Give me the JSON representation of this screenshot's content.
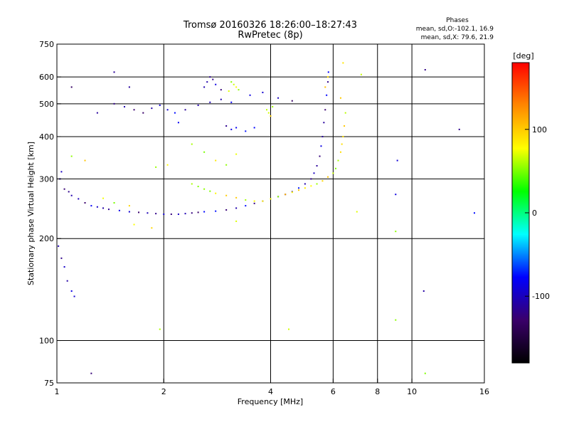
{
  "chart_data": {
    "type": "scatter",
    "title": "Tromsø 20160326 18:26:00–18:27:43",
    "subtitle": "RwPretec (8p)",
    "xlabel": "Frequency [MHz]",
    "ylabel": "Stationary phase Virtual Height [km]",
    "x_scale": "log",
    "y_scale": "log",
    "xlim": [
      1,
      16
    ],
    "ylim": [
      75,
      750
    ],
    "x_ticks": [
      1,
      2,
      4,
      6,
      8,
      10,
      16
    ],
    "x_tick_labels": [
      "1",
      "2",
      "4",
      "6",
      "8",
      "10",
      "16"
    ],
    "x_gridlines": [
      2,
      4,
      6,
      8,
      10
    ],
    "y_ticks": [
      75,
      100,
      200,
      300,
      400,
      500,
      600,
      750
    ],
    "y_tick_labels": [
      "75",
      "100",
      "200",
      "300",
      "400",
      "500",
      "600",
      "750"
    ],
    "y_gridlines": [
      100,
      200,
      300,
      400,
      500,
      600
    ],
    "grid": true,
    "stats": {
      "heading": "Phases",
      "line1": "mean, sd,O:-102.1, 16.9",
      "line2": "mean, sd,X: 79.6, 21.9"
    },
    "colorbar": {
      "label": "[deg]",
      "range": [
        -180,
        180
      ],
      "ticks": [
        100,
        0,
        -100
      ],
      "tick_labels": [
        "100",
        "0",
        "-100"
      ],
      "colors": [
        "#000000",
        "#3a006a",
        "#0000ff",
        "#00ffff",
        "#00ff00",
        "#ffff00",
        "#ff8800",
        "#ff0000"
      ]
    },
    "series": [
      {
        "mode": "O",
        "phase_mean": -102.1,
        "points": [
          [
            1.02,
            300
          ],
          [
            1.03,
            315
          ],
          [
            1.05,
            280
          ],
          [
            1.08,
            275
          ],
          [
            1.1,
            268
          ],
          [
            1.15,
            262
          ],
          [
            1.2,
            255
          ],
          [
            1.25,
            250
          ],
          [
            1.3,
            248
          ],
          [
            1.35,
            246
          ],
          [
            1.4,
            244
          ],
          [
            1.5,
            242
          ],
          [
            1.6,
            240
          ],
          [
            1.7,
            239
          ],
          [
            1.8,
            238
          ],
          [
            1.9,
            237
          ],
          [
            2.0,
            236
          ],
          [
            2.1,
            236
          ],
          [
            2.2,
            236
          ],
          [
            2.3,
            237
          ],
          [
            2.4,
            238
          ],
          [
            2.5,
            239
          ],
          [
            2.6,
            240
          ],
          [
            2.8,
            241
          ],
          [
            3.0,
            243
          ],
          [
            3.2,
            246
          ],
          [
            3.4,
            250
          ],
          [
            3.6,
            254
          ],
          [
            3.8,
            258
          ],
          [
            4.0,
            262
          ],
          [
            4.2,
            266
          ],
          [
            4.4,
            270
          ],
          [
            4.6,
            275
          ],
          [
            4.8,
            282
          ],
          [
            5.0,
            290
          ],
          [
            5.2,
            300
          ],
          [
            5.3,
            312
          ],
          [
            5.4,
            328
          ],
          [
            5.5,
            350
          ],
          [
            5.55,
            375
          ],
          [
            5.6,
            400
          ],
          [
            5.65,
            440
          ],
          [
            5.7,
            480
          ],
          [
            5.75,
            530
          ],
          [
            5.8,
            580
          ],
          [
            5.82,
            620
          ],
          [
            1.01,
            190
          ],
          [
            1.03,
            175
          ],
          [
            1.05,
            165
          ],
          [
            1.07,
            150
          ],
          [
            1.1,
            140
          ],
          [
            1.12,
            135
          ],
          [
            1.25,
            80
          ],
          [
            1.45,
            500
          ],
          [
            1.55,
            490
          ],
          [
            1.65,
            480
          ],
          [
            1.75,
            470
          ],
          [
            1.85,
            485
          ],
          [
            1.95,
            495
          ],
          [
            2.05,
            480
          ],
          [
            2.15,
            470
          ],
          [
            2.3,
            480
          ],
          [
            2.5,
            495
          ],
          [
            2.7,
            505
          ],
          [
            2.9,
            515
          ],
          [
            3.1,
            505
          ],
          [
            2.6,
            560
          ],
          [
            2.65,
            580
          ],
          [
            2.7,
            600
          ],
          [
            2.75,
            590
          ],
          [
            2.8,
            570
          ],
          [
            2.9,
            550
          ],
          [
            3.0,
            430
          ],
          [
            3.1,
            420
          ],
          [
            3.2,
            425
          ],
          [
            3.4,
            415
          ],
          [
            3.6,
            425
          ],
          [
            2.2,
            440
          ],
          [
            3.5,
            530
          ],
          [
            3.8,
            540
          ],
          [
            4.2,
            520
          ],
          [
            4.6,
            510
          ],
          [
            1.45,
            620
          ],
          [
            1.6,
            560
          ],
          [
            10.9,
            630
          ],
          [
            10.8,
            140
          ],
          [
            9.1,
            340
          ],
          [
            9.0,
            270
          ],
          [
            13.6,
            420
          ],
          [
            15.0,
            238
          ],
          [
            1.1,
            560
          ],
          [
            1.3,
            470
          ]
        ]
      },
      {
        "mode": "X",
        "phase_mean": 79.6,
        "points": [
          [
            3.8,
            258
          ],
          [
            4.0,
            262
          ],
          [
            4.2,
            266
          ],
          [
            4.4,
            270
          ],
          [
            4.6,
            274
          ],
          [
            4.8,
            278
          ],
          [
            5.0,
            282
          ],
          [
            5.2,
            286
          ],
          [
            5.4,
            290
          ],
          [
            5.6,
            296
          ],
          [
            5.8,
            304
          ],
          [
            6.0,
            312
          ],
          [
            6.1,
            322
          ],
          [
            6.2,
            340
          ],
          [
            6.3,
            360
          ],
          [
            6.35,
            380
          ],
          [
            6.4,
            400
          ],
          [
            6.45,
            430
          ],
          [
            6.5,
            470
          ],
          [
            6.3,
            520
          ],
          [
            2.4,
            290
          ],
          [
            2.5,
            285
          ],
          [
            2.6,
            280
          ],
          [
            2.7,
            276
          ],
          [
            2.8,
            272
          ],
          [
            3.0,
            268
          ],
          [
            3.2,
            264
          ],
          [
            3.4,
            260
          ],
          [
            3.6,
            258
          ],
          [
            3.1,
            580
          ],
          [
            3.15,
            570
          ],
          [
            3.2,
            560
          ],
          [
            3.25,
            550
          ],
          [
            3.05,
            545
          ],
          [
            3.9,
            480
          ],
          [
            3.95,
            470
          ],
          [
            4.0,
            460
          ],
          [
            4.05,
            490
          ],
          [
            2.4,
            380
          ],
          [
            2.6,
            360
          ],
          [
            2.8,
            340
          ],
          [
            3.0,
            330
          ],
          [
            3.2,
            355
          ],
          [
            1.9,
            325
          ],
          [
            2.05,
            330
          ],
          [
            1.35,
            263
          ],
          [
            1.45,
            255
          ],
          [
            1.6,
            250
          ],
          [
            1.65,
            220
          ],
          [
            1.85,
            215
          ],
          [
            3.2,
            225
          ],
          [
            5.7,
            560
          ],
          [
            5.8,
            600
          ],
          [
            6.4,
            660
          ],
          [
            7.2,
            610
          ],
          [
            7.0,
            240
          ],
          [
            1.1,
            350
          ],
          [
            1.2,
            340
          ],
          [
            9.0,
            210
          ],
          [
            9.0,
            115
          ],
          [
            1.95,
            108
          ],
          [
            4.5,
            108
          ],
          [
            10.9,
            80
          ]
        ]
      }
    ]
  }
}
